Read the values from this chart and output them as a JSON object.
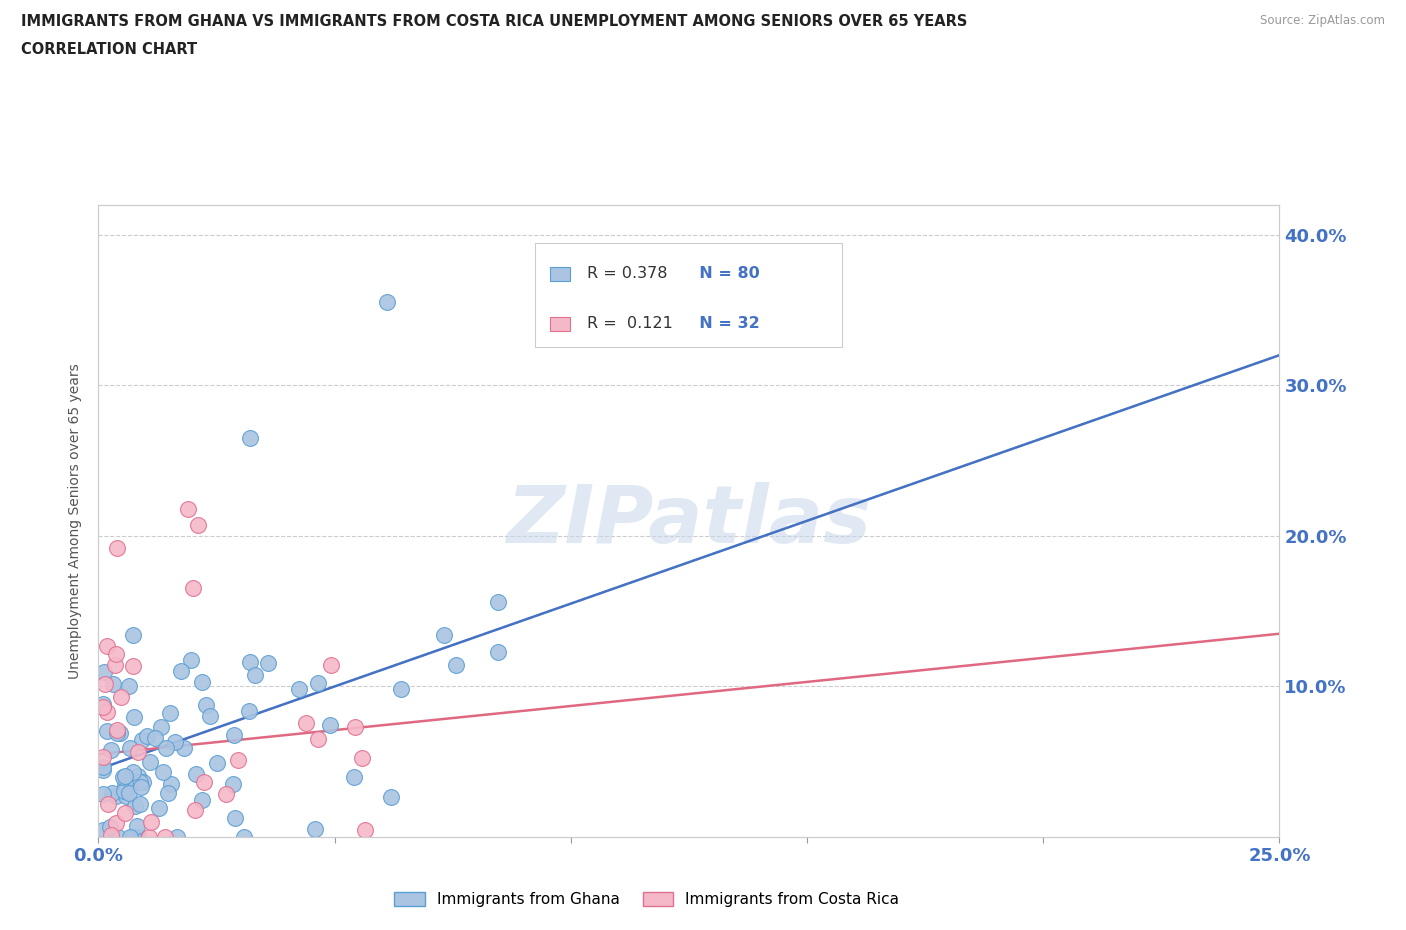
{
  "title_line1": "IMMIGRANTS FROM GHANA VS IMMIGRANTS FROM COSTA RICA UNEMPLOYMENT AMONG SENIORS OVER 65 YEARS",
  "title_line2": "CORRELATION CHART",
  "source": "Source: ZipAtlas.com",
  "ylabel": "Unemployment Among Seniors over 65 years",
  "xlim": [
    0.0,
    0.25
  ],
  "ylim": [
    0.0,
    0.42
  ],
  "ghana_color": "#aac4e2",
  "ghana_edge_color": "#5a9fd4",
  "costa_rica_color": "#f5b8c8",
  "costa_rica_edge_color": "#e07090",
  "ghana_line_color": "#4472c4",
  "costa_rica_line_color": "#e06880",
  "ghana_dash_color": "#aaaaaa",
  "watermark": "ZIPatlas",
  "background_color": "#ffffff",
  "grid_color": "#cccccc",
  "title_color": "#222222",
  "axis_label_color": "#555555",
  "tick_label_color": "#4472c4",
  "legend_r1": "R = 0.378",
  "legend_n1": "N = 80",
  "legend_r2": "R =  0.121",
  "legend_n2": "N = 32",
  "ghana_trend": [
    0.045,
    0.32
  ],
  "cr_trend": [
    0.055,
    0.135
  ]
}
